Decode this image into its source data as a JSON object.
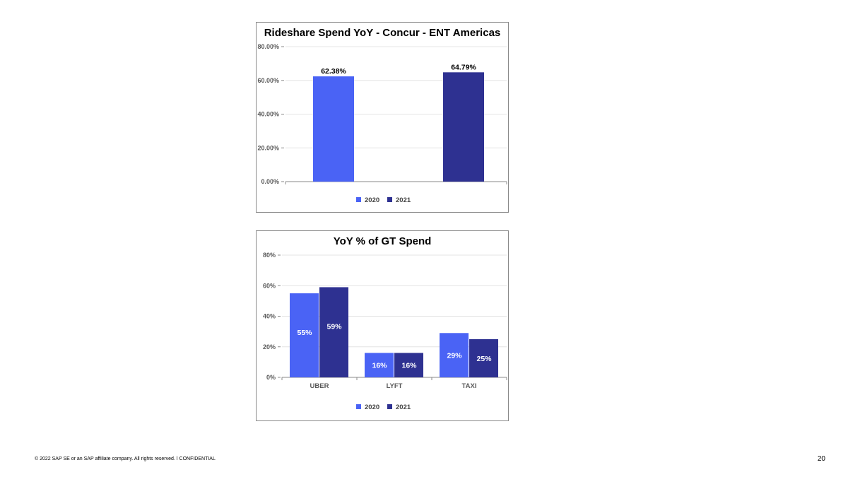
{
  "colors": {
    "series_2020": "#4a63f5",
    "series_2021": "#2e3191",
    "grid": "#e4e4e4",
    "axis": "#8a8a8a"
  },
  "chart_data": [
    {
      "type": "bar",
      "title": "Rideshare Spend YoY - Concur - ENT Americas",
      "categories": [
        ""
      ],
      "series": [
        {
          "name": "2020",
          "values": [
            62.38
          ],
          "labels": [
            "62.38%"
          ]
        },
        {
          "name": "2021",
          "values": [
            64.79
          ],
          "labels": [
            "64.79%"
          ]
        }
      ],
      "yticks": [
        "0.00%",
        "20.00%",
        "40.00%",
        "60.00%",
        "80.00%"
      ],
      "ylim": [
        0,
        80
      ],
      "grid": true,
      "legend": "bottom",
      "data_label_position": "above"
    },
    {
      "type": "bar",
      "title": "YoY % of GT Spend",
      "categories": [
        "UBER",
        "LYFT",
        "TAXI"
      ],
      "series": [
        {
          "name": "2020",
          "values": [
            55,
            16,
            29
          ],
          "labels": [
            "55%",
            "16%",
            "29%"
          ]
        },
        {
          "name": "2021",
          "values": [
            59,
            16,
            25
          ],
          "labels": [
            "59%",
            "16%",
            "25%"
          ]
        }
      ],
      "yticks": [
        "0%",
        "20%",
        "40%",
        "60%",
        "80%"
      ],
      "ylim": [
        0,
        80
      ],
      "grid": true,
      "legend": "bottom",
      "data_label_position": "inside"
    }
  ],
  "footer": {
    "copyright": "© 2022 SAP SE or an SAP affiliate company. All rights reserved.  ǀ   CONFIDENTIAL",
    "page_number": "20"
  }
}
